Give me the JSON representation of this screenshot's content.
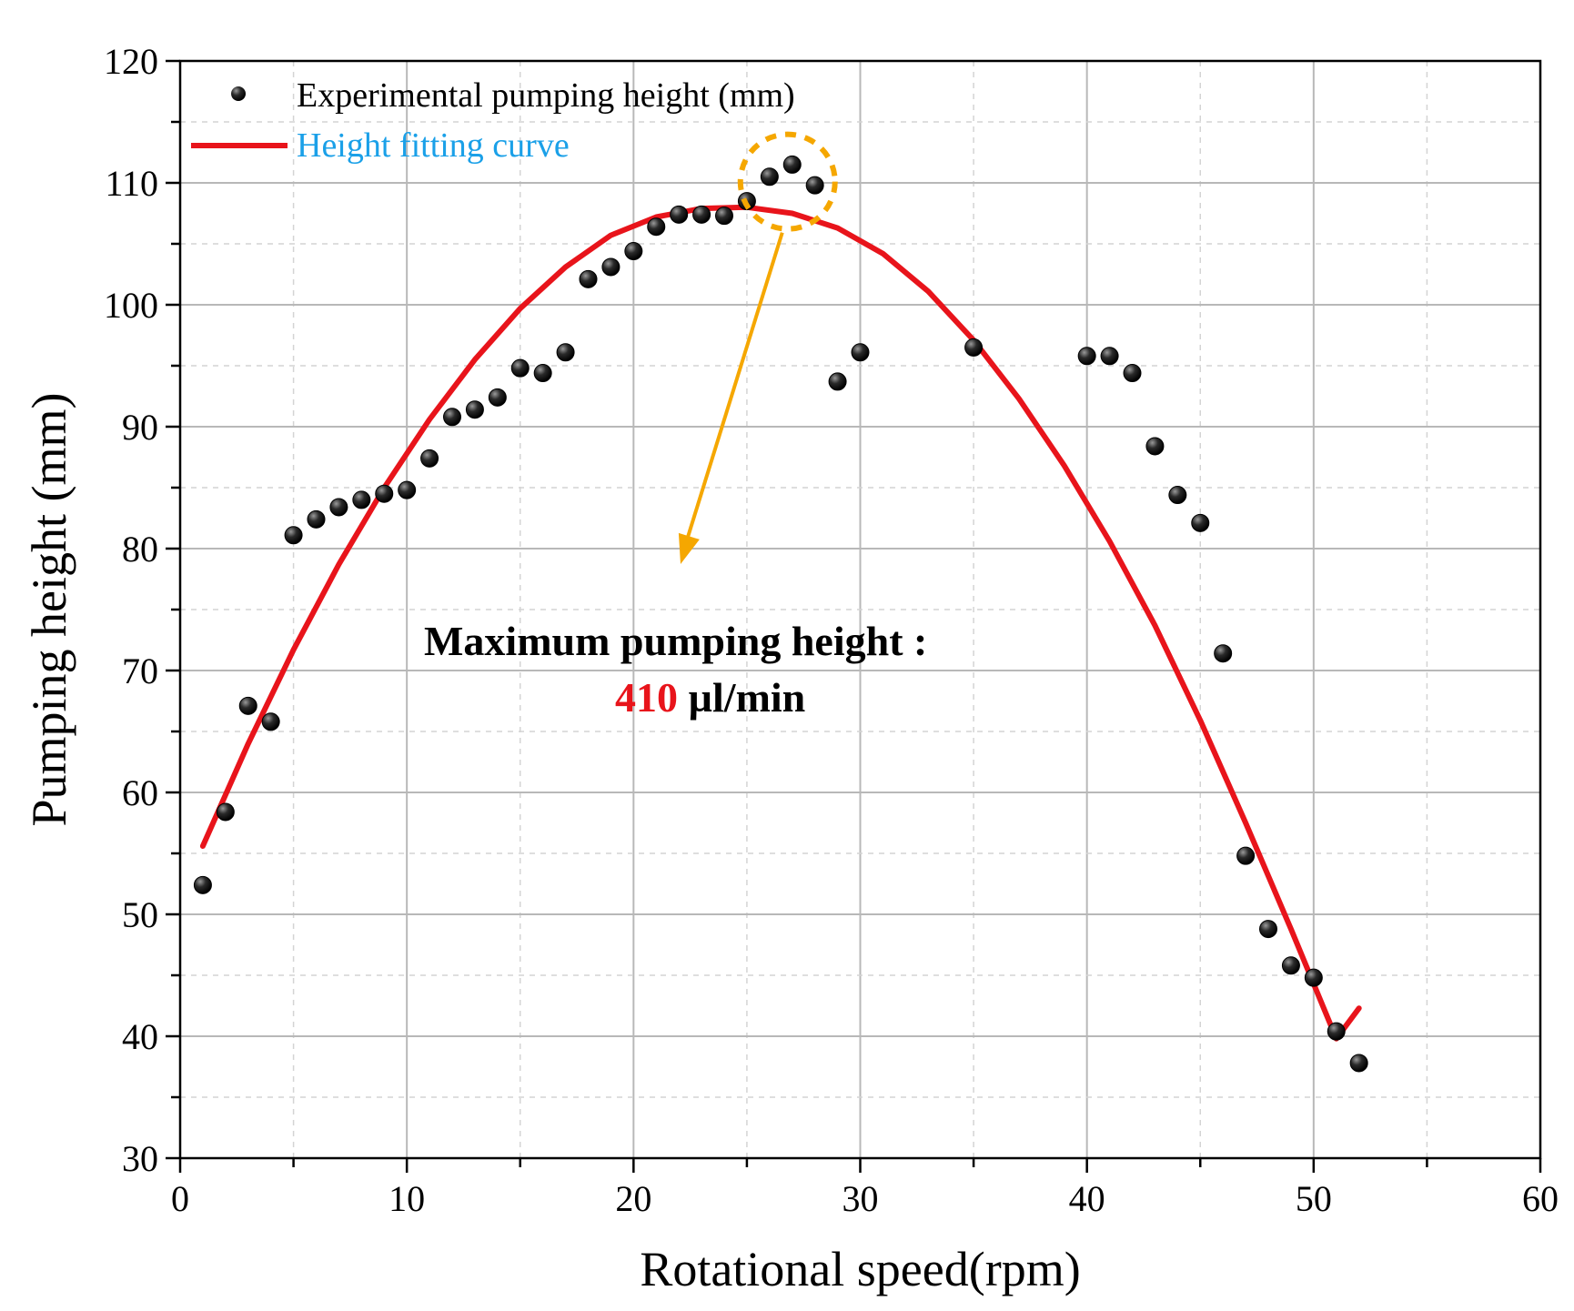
{
  "chart_data": {
    "type": "scatter",
    "xlabel": "Rotational speed(rpm)",
    "ylabel": "Pumping height (mm)",
    "xlim": [
      0,
      60
    ],
    "ylim": [
      30,
      120
    ],
    "xticks": [
      "0",
      "10",
      "20",
      "30",
      "40",
      "50",
      "60"
    ],
    "yticks": [
      "30",
      "40",
      "50",
      "60",
      "70",
      "80",
      "90",
      "100",
      "110",
      "120"
    ],
    "grid": true,
    "legend_position": "top-left",
    "colors": {
      "points": "#000000",
      "fit": "#e8141b",
      "highlight": "#f5a700",
      "fit_label": "#1aa0e8",
      "value": "#e8141b"
    },
    "series": [
      {
        "name": "Experimental  pumping height (mm)",
        "type": "scatter",
        "points": [
          [
            1,
            52.4
          ],
          [
            2,
            58.4
          ],
          [
            3,
            67.1
          ],
          [
            4,
            65.8
          ],
          [
            5,
            81.1
          ],
          [
            6,
            82.4
          ],
          [
            7,
            83.4
          ],
          [
            8,
            84.0
          ],
          [
            9,
            84.5
          ],
          [
            10,
            84.8
          ],
          [
            11,
            87.4
          ],
          [
            12,
            90.8
          ],
          [
            13,
            91.4
          ],
          [
            14,
            92.4
          ],
          [
            15,
            94.8
          ],
          [
            16,
            94.4
          ],
          [
            17,
            96.1
          ],
          [
            18,
            102.1
          ],
          [
            19,
            103.1
          ],
          [
            20,
            104.4
          ],
          [
            21,
            106.4
          ],
          [
            22,
            107.4
          ],
          [
            23,
            107.4
          ],
          [
            24,
            107.3
          ],
          [
            25,
            108.5
          ],
          [
            26,
            110.5
          ],
          [
            27,
            111.5
          ],
          [
            28,
            109.8
          ],
          [
            29,
            93.7
          ],
          [
            30,
            96.1
          ],
          [
            35,
            96.5
          ],
          [
            40,
            95.8
          ],
          [
            41,
            95.8
          ],
          [
            42,
            94.4
          ],
          [
            43,
            88.4
          ],
          [
            44,
            84.4
          ],
          [
            45,
            82.1
          ],
          [
            46,
            71.4
          ],
          [
            47,
            54.8
          ],
          [
            48,
            48.8
          ],
          [
            49,
            45.8
          ],
          [
            50,
            44.8
          ],
          [
            51,
            40.4
          ],
          [
            52,
            37.8
          ]
        ]
      },
      {
        "name": "Height fitting curve",
        "type": "line",
        "points": [
          [
            1,
            55.6
          ],
          [
            3,
            64.0
          ],
          [
            5,
            71.7
          ],
          [
            7,
            78.7
          ],
          [
            9,
            85.0
          ],
          [
            11,
            90.6
          ],
          [
            13,
            95.5
          ],
          [
            15,
            99.7
          ],
          [
            17,
            103.1
          ],
          [
            19,
            105.7
          ],
          [
            21,
            107.2
          ],
          [
            23,
            107.9
          ],
          [
            25,
            108.0
          ],
          [
            27,
            107.5
          ],
          [
            29,
            106.3
          ],
          [
            31,
            104.2
          ],
          [
            33,
            101.1
          ],
          [
            35,
            97.1
          ],
          [
            37,
            92.3
          ],
          [
            39,
            86.8
          ],
          [
            41,
            80.6
          ],
          [
            43,
            73.7
          ],
          [
            45,
            65.9
          ],
          [
            47,
            57.5
          ],
          [
            49,
            48.8
          ],
          [
            51,
            39.8
          ],
          [
            52,
            42.3
          ]
        ]
      }
    ],
    "annotations": {
      "title_line": "Maximum pumping height :",
      "value": "410",
      "unit": "µl/min",
      "highlight_center": [
        26.8,
        110.1
      ]
    }
  }
}
